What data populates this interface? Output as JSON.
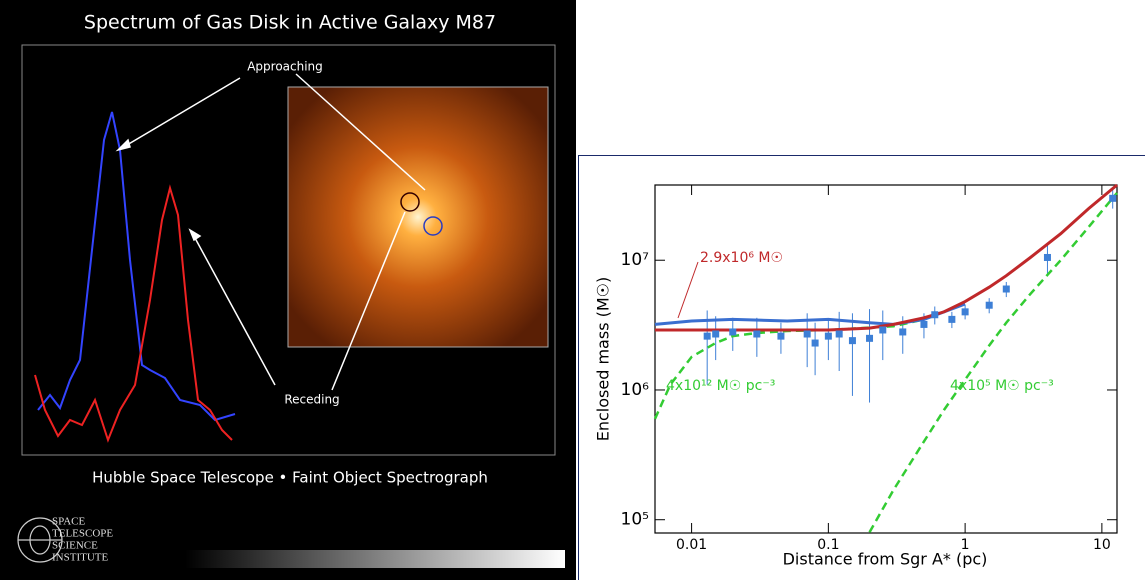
{
  "panel": {
    "title": "Spectrum of Gas Disk in Active Galaxy M87",
    "approaching": "Approaching",
    "receding": "Receding",
    "footer": "Hubble Space Telescope • Faint Object Spectrograph",
    "logo": [
      "SPACE",
      "TELESCOPE",
      "SCIENCE",
      "INSTITUTE"
    ]
  },
  "chart_data": {
    "type": "line",
    "xlabel": "Distance from Sgr A* (pc)",
    "ylabel": "Enclosed mass (M☉)",
    "xscale": "log",
    "yscale": "log",
    "xlim": [
      0.0054,
      12.9
    ],
    "ylim": [
      79000,
      38000000
    ],
    "xticks": [
      0.01,
      0.1,
      1,
      10
    ],
    "yticks": [
      {
        "value": 100000,
        "label": "10⁵"
      },
      {
        "value": 1000000,
        "label": "10⁶"
      },
      {
        "value": 10000000,
        "label": "10⁷"
      }
    ],
    "annotations": [
      "2.9x10⁶ M☉",
      "4x10¹² M☉ pc⁻³",
      "4x10⁵ M☉ pc⁻³"
    ],
    "series": [
      {
        "color": "#33cc33",
        "style": "dashed",
        "x": [
          0.0054,
          0.007,
          0.01,
          0.015,
          0.02,
          0.03,
          0.05,
          0.1,
          0.3,
          0.5
        ],
        "values": [
          600000,
          1100000,
          1800000,
          2300000,
          2600000,
          2750000,
          2850000,
          2900000,
          3100000,
          3500000
        ]
      },
      {
        "color": "#33cc33",
        "style": "dashed",
        "x": [
          0.2,
          0.3,
          0.5,
          0.7,
          1,
          1.5,
          2,
          3,
          5,
          8,
          12.9
        ],
        "values": [
          80000,
          170000,
          400000,
          700000,
          1200000,
          2200000,
          3300000,
          5500000,
          10000000,
          18000000,
          33000000
        ]
      },
      {
        "color": "#3a6fd0",
        "style": "solid",
        "x": [
          0.0054,
          0.01,
          0.02,
          0.05,
          0.1,
          0.2,
          0.3,
          0.5,
          1
        ],
        "values": [
          3200000,
          3400000,
          3500000,
          3400000,
          3500000,
          3300000,
          3200000,
          3500000,
          4600000
        ]
      },
      {
        "color": "#c0282a",
        "style": "solid",
        "x": [
          0.0054,
          0.01,
          0.05,
          0.1,
          0.2,
          0.3,
          0.5,
          0.7,
          1,
          1.5,
          2,
          3,
          5,
          8,
          12.9
        ],
        "values": [
          2900000,
          2900000,
          2900000,
          2900000,
          3000000,
          3200000,
          3600000,
          4000000,
          4800000,
          6200000,
          7600000,
          10500000,
          16000000,
          25000000,
          38000000
        ]
      }
    ],
    "points": {
      "color": "#3d7fd6",
      "x": [
        0.013,
        0.015,
        0.02,
        0.03,
        0.045,
        0.07,
        0.08,
        0.1,
        0.12,
        0.15,
        0.2,
        0.25,
        0.35,
        0.5,
        0.6,
        0.8,
        1.0,
        1.5,
        2.0,
        4.0,
        12
      ],
      "values": [
        2600000,
        2700000,
        2800000,
        2700000,
        2600000,
        2700000,
        2300000,
        2600000,
        2700000,
        2400000,
        2500000,
        2900000,
        2800000,
        3200000,
        3800000,
        3500000,
        4000000,
        4500000,
        6000000,
        10500000,
        30000000
      ],
      "errors": [
        1500000,
        1000000,
        800000,
        900000,
        700000,
        1200000,
        1000000,
        900000,
        1300000,
        1500000,
        1700000,
        1200000,
        900000,
        700000,
        600000,
        500000,
        500000,
        600000,
        800000,
        3000000,
        5000000
      ]
    }
  }
}
